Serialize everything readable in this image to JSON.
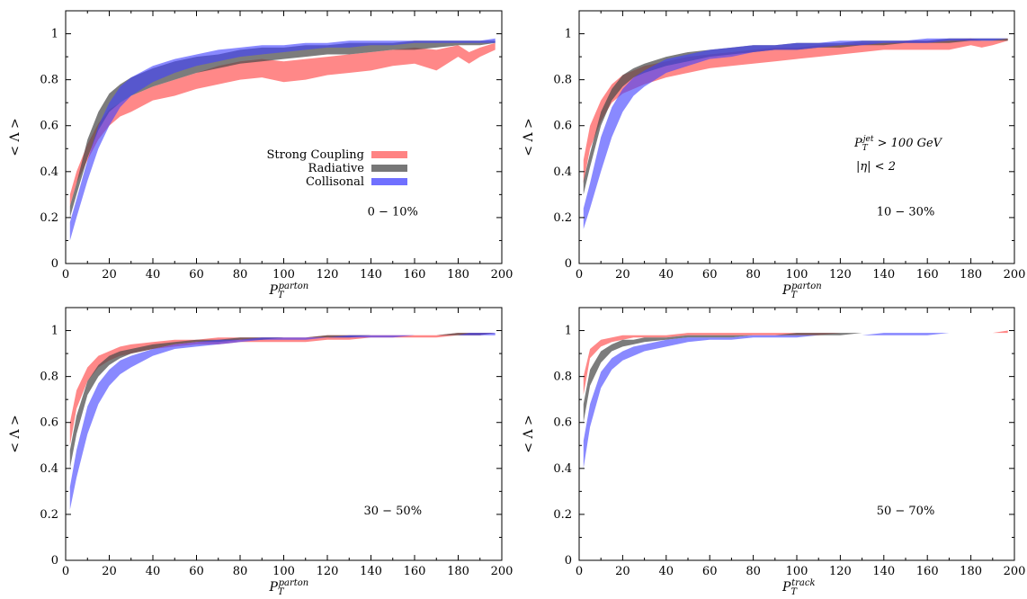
{
  "chart_data": [
    {
      "type": "area",
      "xlabel_base": "P",
      "xlabel_sub": "T",
      "xlabel_sup": "parton",
      "ylabel": "< Λ >",
      "xlim": [
        0,
        200
      ],
      "ylim": [
        0,
        1.1
      ],
      "xticks": [
        "0",
        "20",
        "40",
        "60",
        "80",
        "100",
        "120",
        "140",
        "160",
        "180",
        "200"
      ],
      "yticks": [
        "0",
        "0.2",
        "0.4",
        "0.6",
        "0.8",
        "1"
      ],
      "annotation": "0 − 10%",
      "legend": {
        "placement": "center",
        "entries": [
          "Strong Coupling",
          "Radiative",
          "Collisonal"
        ]
      },
      "x": [
        2,
        5,
        10,
        15,
        20,
        25,
        30,
        40,
        50,
        60,
        70,
        80,
        90,
        100,
        110,
        120,
        130,
        140,
        150,
        160,
        170,
        180,
        185,
        190,
        197
      ],
      "series": [
        {
          "name": "Strong Coupling",
          "color": "#ff5a5a",
          "lower": [
            0.25,
            0.35,
            0.45,
            0.54,
            0.6,
            0.64,
            0.66,
            0.71,
            0.73,
            0.76,
            0.78,
            0.8,
            0.81,
            0.79,
            0.8,
            0.82,
            0.83,
            0.84,
            0.86,
            0.87,
            0.84,
            0.9,
            0.87,
            0.9,
            0.93
          ],
          "upper": [
            0.3,
            0.4,
            0.52,
            0.61,
            0.67,
            0.7,
            0.73,
            0.77,
            0.8,
            0.83,
            0.86,
            0.88,
            0.89,
            0.88,
            0.89,
            0.9,
            0.91,
            0.92,
            0.93,
            0.94,
            0.93,
            0.95,
            0.92,
            0.94,
            0.96
          ]
        },
        {
          "name": "Radiative",
          "color": "#4a4a4a",
          "lower": [
            0.2,
            0.3,
            0.46,
            0.58,
            0.66,
            0.7,
            0.73,
            0.77,
            0.8,
            0.83,
            0.85,
            0.87,
            0.88,
            0.89,
            0.9,
            0.91,
            0.91,
            0.92,
            0.93,
            0.93,
            0.94,
            0.95,
            0.95,
            0.95,
            0.96
          ],
          "upper": [
            0.25,
            0.35,
            0.54,
            0.66,
            0.74,
            0.78,
            0.81,
            0.85,
            0.88,
            0.9,
            0.91,
            0.93,
            0.94,
            0.94,
            0.95,
            0.95,
            0.96,
            0.96,
            0.96,
            0.97,
            0.97,
            0.97,
            0.97,
            0.97,
            0.97
          ]
        },
        {
          "name": "Collisonal",
          "color": "#4040ff",
          "lower": [
            0.1,
            0.2,
            0.36,
            0.5,
            0.6,
            0.68,
            0.73,
            0.79,
            0.83,
            0.86,
            0.88,
            0.9,
            0.91,
            0.92,
            0.93,
            0.94,
            0.94,
            0.95,
            0.95,
            0.96,
            0.96,
            0.96,
            0.96,
            0.96,
            0.96
          ],
          "upper": [
            0.18,
            0.28,
            0.45,
            0.6,
            0.7,
            0.77,
            0.81,
            0.86,
            0.89,
            0.91,
            0.93,
            0.94,
            0.95,
            0.95,
            0.96,
            0.96,
            0.97,
            0.97,
            0.97,
            0.97,
            0.97,
            0.97,
            0.97,
            0.97,
            0.98
          ]
        }
      ]
    },
    {
      "type": "area",
      "xlabel_base": "P",
      "xlabel_sub": "T",
      "xlabel_sup": "parton",
      "ylabel": "< Λ >",
      "xlim": [
        0,
        200
      ],
      "ylim": [
        0,
        1.1
      ],
      "xticks": [
        "0",
        "20",
        "40",
        "60",
        "80",
        "100",
        "120",
        "140",
        "160",
        "180",
        "200"
      ],
      "yticks": [
        "0",
        "0.2",
        "0.4",
        "0.6",
        "0.8",
        "1"
      ],
      "annotation": "10 − 30%",
      "cut_line1_base": "P",
      "cut_line1_sub": "T",
      "cut_line1_sup": "jet",
      "cut_line1_rest": " > 100 GeV",
      "cut_line2": "|η| < 2",
      "x": [
        2,
        5,
        10,
        15,
        20,
        25,
        30,
        40,
        50,
        60,
        70,
        80,
        90,
        100,
        110,
        120,
        130,
        140,
        150,
        160,
        170,
        180,
        185,
        190,
        197
      ],
      "series": [
        {
          "name": "Strong Coupling",
          "color": "#ff5a5a",
          "lower": [
            0.35,
            0.5,
            0.62,
            0.7,
            0.74,
            0.76,
            0.78,
            0.81,
            0.83,
            0.85,
            0.86,
            0.87,
            0.88,
            0.89,
            0.9,
            0.91,
            0.92,
            0.93,
            0.93,
            0.93,
            0.93,
            0.95,
            0.94,
            0.95,
            0.97
          ],
          "upper": [
            0.45,
            0.6,
            0.71,
            0.78,
            0.82,
            0.84,
            0.86,
            0.88,
            0.9,
            0.91,
            0.92,
            0.93,
            0.94,
            0.94,
            0.95,
            0.95,
            0.96,
            0.96,
            0.97,
            0.97,
            0.97,
            0.98,
            0.97,
            0.97,
            0.98
          ]
        },
        {
          "name": "Radiative",
          "color": "#4a4a4a",
          "lower": [
            0.3,
            0.42,
            0.6,
            0.71,
            0.77,
            0.81,
            0.83,
            0.86,
            0.88,
            0.9,
            0.91,
            0.92,
            0.93,
            0.93,
            0.94,
            0.94,
            0.95,
            0.95,
            0.96,
            0.96,
            0.96,
            0.97,
            0.97,
            0.97,
            0.97
          ],
          "upper": [
            0.36,
            0.48,
            0.66,
            0.76,
            0.82,
            0.85,
            0.87,
            0.9,
            0.92,
            0.93,
            0.94,
            0.95,
            0.95,
            0.96,
            0.96,
            0.96,
            0.97,
            0.97,
            0.97,
            0.97,
            0.98,
            0.98,
            0.98,
            0.98,
            0.98
          ]
        },
        {
          "name": "Collisonal",
          "color": "#4040ff",
          "lower": [
            0.15,
            0.24,
            0.4,
            0.55,
            0.66,
            0.73,
            0.77,
            0.83,
            0.86,
            0.89,
            0.9,
            0.92,
            0.93,
            0.93,
            0.94,
            0.95,
            0.95,
            0.96,
            0.96,
            0.96,
            0.97,
            0.97,
            0.97,
            0.97,
            0.98
          ],
          "upper": [
            0.24,
            0.35,
            0.55,
            0.68,
            0.76,
            0.81,
            0.84,
            0.89,
            0.91,
            0.93,
            0.94,
            0.95,
            0.95,
            0.96,
            0.96,
            0.97,
            0.97,
            0.97,
            0.97,
            0.98,
            0.98,
            0.98,
            0.98,
            0.98,
            0.98
          ]
        }
      ]
    },
    {
      "type": "area",
      "xlabel_base": "P",
      "xlabel_sub": "T",
      "xlabel_sup": "parton",
      "ylabel": "< Λ >",
      "xlim": [
        0,
        200
      ],
      "ylim": [
        0,
        1.1
      ],
      "xticks": [
        "0",
        "20",
        "40",
        "60",
        "80",
        "100",
        "120",
        "140",
        "160",
        "180",
        "200"
      ],
      "yticks": [
        "0",
        "0.2",
        "0.4",
        "0.6",
        "0.8",
        "1"
      ],
      "annotation": "30 − 50%",
      "x": [
        2,
        5,
        10,
        15,
        20,
        25,
        30,
        40,
        50,
        60,
        70,
        80,
        90,
        100,
        110,
        120,
        130,
        140,
        150,
        160,
        170,
        180,
        185,
        190,
        197
      ],
      "series": [
        {
          "name": "Strong Coupling",
          "color": "#ff5a5a",
          "lower": [
            0.5,
            0.66,
            0.78,
            0.84,
            0.87,
            0.89,
            0.9,
            0.92,
            0.93,
            0.94,
            0.94,
            0.95,
            0.95,
            0.95,
            0.95,
            0.96,
            0.96,
            0.97,
            0.97,
            0.97,
            0.97,
            0.98,
            0.98,
            0.98,
            0.99
          ],
          "upper": [
            0.6,
            0.74,
            0.84,
            0.89,
            0.91,
            0.93,
            0.94,
            0.95,
            0.96,
            0.96,
            0.97,
            0.97,
            0.97,
            0.97,
            0.97,
            0.98,
            0.98,
            0.98,
            0.98,
            0.98,
            0.98,
            0.99,
            0.99,
            0.99,
            0.99
          ]
        },
        {
          "name": "Radiative",
          "color": "#4a4a4a",
          "lower": [
            0.4,
            0.55,
            0.72,
            0.8,
            0.85,
            0.88,
            0.9,
            0.92,
            0.94,
            0.95,
            0.95,
            0.96,
            0.96,
            0.97,
            0.97,
            0.97,
            0.97,
            0.98,
            0.98,
            0.98,
            0.98,
            0.98,
            0.98,
            0.98,
            0.99
          ],
          "upper": [
            0.48,
            0.63,
            0.78,
            0.85,
            0.89,
            0.91,
            0.92,
            0.94,
            0.95,
            0.96,
            0.96,
            0.97,
            0.97,
            0.97,
            0.97,
            0.98,
            0.98,
            0.98,
            0.98,
            0.98,
            0.98,
            0.99,
            0.99,
            0.99,
            0.99
          ]
        },
        {
          "name": "Collisonal",
          "color": "#4040ff",
          "lower": [
            0.22,
            0.36,
            0.55,
            0.68,
            0.76,
            0.81,
            0.84,
            0.89,
            0.92,
            0.93,
            0.94,
            0.95,
            0.96,
            0.96,
            0.96,
            0.97,
            0.97,
            0.97,
            0.97,
            0.98,
            0.98,
            0.98,
            0.98,
            0.98,
            0.98
          ],
          "upper": [
            0.32,
            0.48,
            0.67,
            0.77,
            0.83,
            0.87,
            0.89,
            0.92,
            0.94,
            0.95,
            0.96,
            0.96,
            0.97,
            0.97,
            0.97,
            0.97,
            0.98,
            0.98,
            0.98,
            0.98,
            0.98,
            0.98,
            0.99,
            0.99,
            0.99
          ]
        }
      ]
    },
    {
      "type": "area",
      "xlabel_base": "P",
      "xlabel_sub": "T",
      "xlabel_sup": "track",
      "ylabel": "< Λ >",
      "xlim": [
        0,
        200
      ],
      "ylim": [
        0,
        1.1
      ],
      "xticks": [
        "0",
        "20",
        "40",
        "60",
        "80",
        "100",
        "120",
        "140",
        "160",
        "180",
        "200"
      ],
      "yticks": [
        "0",
        "0.2",
        "0.4",
        "0.6",
        "0.8",
        "1"
      ],
      "annotation": "50 − 70%",
      "x": [
        2,
        5,
        10,
        15,
        20,
        25,
        30,
        40,
        50,
        60,
        70,
        80,
        90,
        100,
        110,
        120,
        130,
        140,
        150,
        160,
        170,
        180,
        185,
        190,
        197
      ],
      "series": [
        {
          "name": "Strong Coupling",
          "color": "#ff5a5a",
          "lower": [
            0.72,
            0.88,
            0.93,
            0.95,
            0.96,
            0.97,
            0.97,
            0.97,
            0.98,
            0.98,
            0.98,
            0.98,
            0.98,
            0.98,
            0.98,
            0.99,
            0.99,
            0.99,
            0.99,
            0.99,
            0.99,
            0.99,
            0.99,
            0.99,
            0.99
          ],
          "upper": [
            0.8,
            0.92,
            0.96,
            0.97,
            0.98,
            0.98,
            0.98,
            0.98,
            0.99,
            0.99,
            0.99,
            0.99,
            0.99,
            0.99,
            0.99,
            0.99,
            0.99,
            0.99,
            0.99,
            0.99,
            0.99,
            0.99,
            0.99,
            0.99,
            1.0
          ]
        },
        {
          "name": "Radiative",
          "color": "#4a4a4a",
          "lower": [
            0.6,
            0.76,
            0.86,
            0.91,
            0.93,
            0.94,
            0.95,
            0.96,
            0.97,
            0.97,
            0.97,
            0.98,
            0.98,
            0.98,
            0.98,
            0.98,
            0.99,
            0.99,
            0.99,
            0.99,
            0.99,
            0.99,
            0.99,
            0.99,
            0.99
          ],
          "upper": [
            0.68,
            0.83,
            0.91,
            0.94,
            0.96,
            0.96,
            0.97,
            0.97,
            0.98,
            0.98,
            0.98,
            0.98,
            0.98,
            0.99,
            0.99,
            0.99,
            0.99,
            0.99,
            0.99,
            0.99,
            0.99,
            0.99,
            0.99,
            0.99,
            0.99
          ]
        },
        {
          "name": "Collisonal",
          "color": "#4040ff",
          "lower": [
            0.4,
            0.58,
            0.75,
            0.83,
            0.87,
            0.89,
            0.91,
            0.93,
            0.95,
            0.96,
            0.96,
            0.97,
            0.97,
            0.97,
            0.98,
            0.98,
            0.98,
            0.98,
            0.98,
            0.98,
            0.99,
            0.99,
            0.99,
            0.99,
            0.99
          ],
          "upper": [
            0.52,
            0.68,
            0.82,
            0.88,
            0.91,
            0.93,
            0.94,
            0.96,
            0.97,
            0.97,
            0.97,
            0.98,
            0.98,
            0.98,
            0.98,
            0.98,
            0.98,
            0.99,
            0.99,
            0.99,
            0.99,
            0.99,
            0.99,
            0.99,
            0.99
          ]
        }
      ]
    }
  ]
}
